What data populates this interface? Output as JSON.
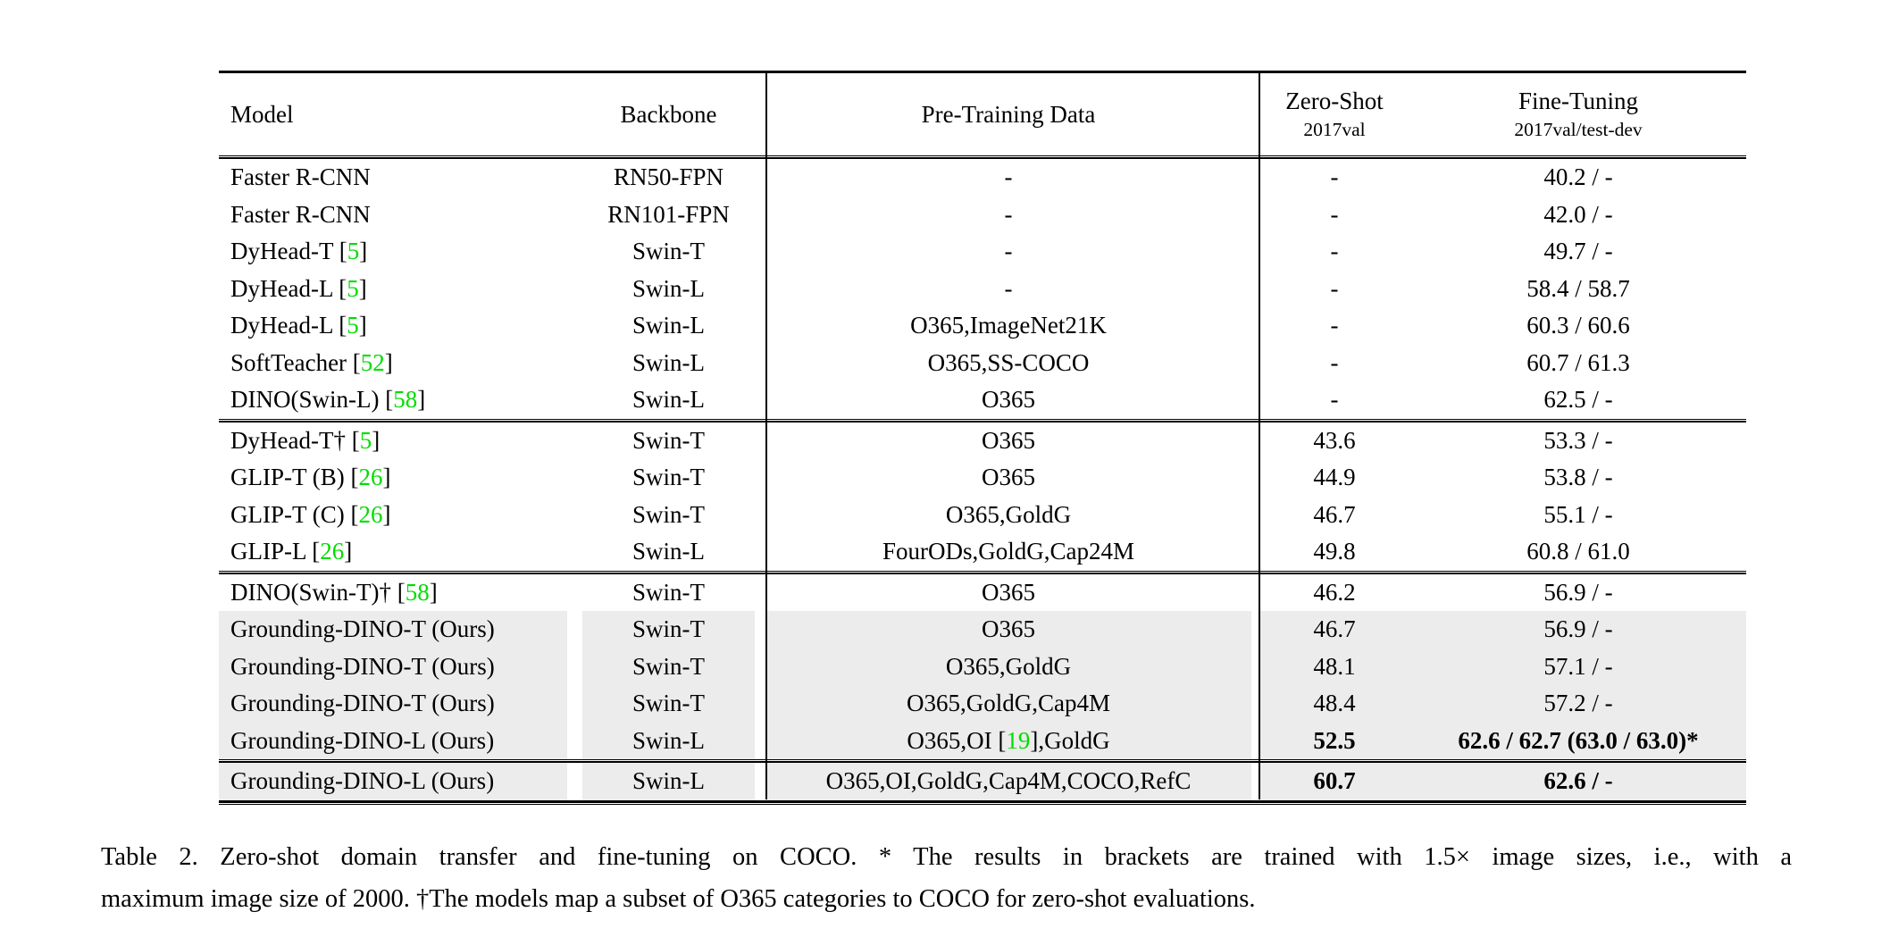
{
  "colors": {
    "citation_green": "#00dd00",
    "row_shade": "#ececec",
    "rule_black": "#000000",
    "page_background": "#ffffff"
  },
  "table": {
    "headers": {
      "model": "Model",
      "backbone": "Backbone",
      "pretrain": "Pre-Training Data",
      "zeroshot_title": "Zero-Shot",
      "zeroshot_sub": "2017val",
      "finetune_title": "Fine-Tuning",
      "finetune_sub": "2017val/test-dev"
    },
    "blocks": [
      {
        "rows": [
          {
            "model": "Faster R-CNN",
            "backbone": "RN50-FPN",
            "pretrain": "-",
            "zeroshot": "-",
            "finetune": "40.2 / -",
            "shaded": false,
            "bold": false
          },
          {
            "model": "Faster R-CNN",
            "backbone": "RN101-FPN",
            "pretrain": "-",
            "zeroshot": "-",
            "finetune": "42.0 / -",
            "shaded": false,
            "bold": false
          },
          {
            "model": "DyHead-T [[5]]",
            "backbone": "Swin-T",
            "pretrain": "-",
            "zeroshot": "-",
            "finetune": "49.7 / -",
            "shaded": false,
            "bold": false
          },
          {
            "model": "DyHead-L [[5]]",
            "backbone": "Swin-L",
            "pretrain": "-",
            "zeroshot": "-",
            "finetune": "58.4 / 58.7",
            "shaded": false,
            "bold": false
          },
          {
            "model": "DyHead-L [[5]]",
            "backbone": "Swin-L",
            "pretrain": "O365,ImageNet21K",
            "zeroshot": "-",
            "finetune": "60.3 / 60.6",
            "shaded": false,
            "bold": false
          },
          {
            "model": "SoftTeacher [[52]]",
            "backbone": "Swin-L",
            "pretrain": "O365,SS-COCO",
            "zeroshot": "-",
            "finetune": "60.7 / 61.3",
            "shaded": false,
            "bold": false
          },
          {
            "model": "DINO(Swin-L) [[58]]",
            "backbone": "Swin-L",
            "pretrain": "O365",
            "zeroshot": "-",
            "finetune": "62.5 / -",
            "shaded": false,
            "bold": false
          }
        ]
      },
      {
        "rows": [
          {
            "model": "DyHead-T† [[5]]",
            "backbone": "Swin-T",
            "pretrain": "O365",
            "zeroshot": "43.6",
            "finetune": "53.3 / -",
            "shaded": false,
            "bold": false
          },
          {
            "model": "GLIP-T (B) [[26]]",
            "backbone": "Swin-T",
            "pretrain": "O365",
            "zeroshot": "44.9",
            "finetune": "53.8 / -",
            "shaded": false,
            "bold": false
          },
          {
            "model": "GLIP-T (C) [[26]]",
            "backbone": "Swin-T",
            "pretrain": "O365,GoldG",
            "zeroshot": "46.7",
            "finetune": "55.1 / -",
            "shaded": false,
            "bold": false
          },
          {
            "model": "GLIP-L [[26]]",
            "backbone": "Swin-L",
            "pretrain": "FourODs,GoldG,Cap24M",
            "zeroshot": "49.8",
            "finetune": "60.8 / 61.0",
            "shaded": false,
            "bold": false
          }
        ]
      },
      {
        "rows": [
          {
            "model": "DINO(Swin-T)† [[58]]",
            "backbone": "Swin-T",
            "pretrain": "O365",
            "zeroshot": "46.2",
            "finetune": "56.9 / -",
            "shaded": false,
            "bold": false
          },
          {
            "model": "Grounding-DINO-T (Ours)",
            "backbone": "Swin-T",
            "pretrain": "O365",
            "zeroshot": "46.7",
            "finetune": "56.9 / -",
            "shaded": true,
            "bold": false
          },
          {
            "model": "Grounding-DINO-T (Ours)",
            "backbone": "Swin-T",
            "pretrain": "O365,GoldG",
            "zeroshot": "48.1",
            "finetune": "57.1 / -",
            "shaded": true,
            "bold": false
          },
          {
            "model": "Grounding-DINO-T (Ours)",
            "backbone": "Swin-T",
            "pretrain": "O365,GoldG,Cap4M",
            "zeroshot": "48.4",
            "finetune": "57.2 / -",
            "shaded": true,
            "bold": false
          },
          {
            "model": "Grounding-DINO-L (Ours)",
            "backbone": "Swin-L",
            "pretrain": "O365,OI [[19]],GoldG",
            "zeroshot": "52.5",
            "finetune": "62.6 / 62.7 (63.0 / 63.0)*",
            "shaded": true,
            "bold": true
          }
        ]
      },
      {
        "rows": [
          {
            "model": "Grounding-DINO-L (Ours)",
            "backbone": "Swin-L",
            "pretrain": "O365,OI,GoldG,Cap4M,COCO,RefC",
            "zeroshot": "60.7",
            "finetune": "62.6 / -",
            "shaded": true,
            "bold": true
          }
        ]
      }
    ],
    "caption_lines": [
      "Table 2. Zero-shot domain transfer and fine-tuning on COCO. * The results in brackets are trained with 1.5× image sizes, i.e., with a",
      "maximum image size of 2000. †The models map a subset of O365 categories to COCO for zero-shot evaluations."
    ]
  }
}
